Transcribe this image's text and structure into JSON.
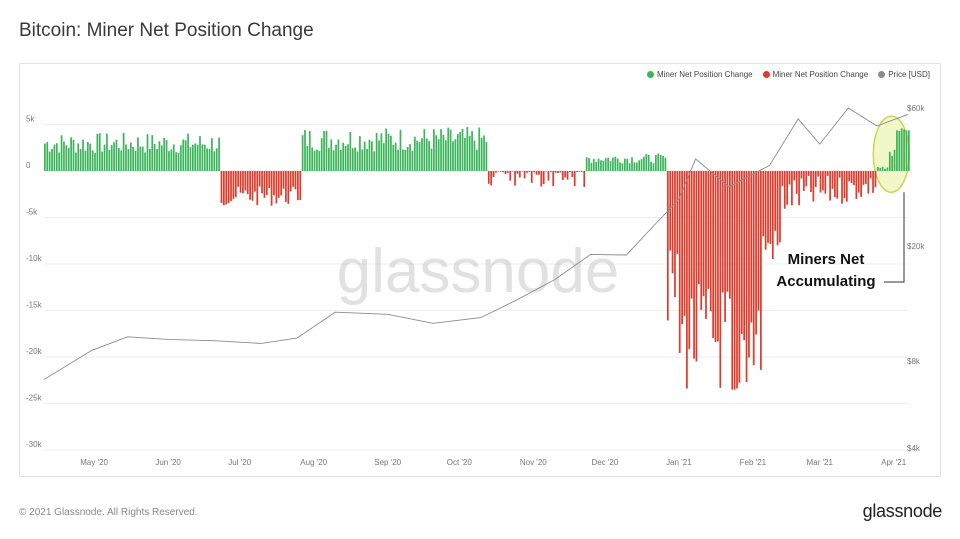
{
  "title": "Bitcoin: Miner Net Position Change",
  "legend": {
    "green_label": "Miner Net Position Change",
    "red_label": "Miner Net Position Change",
    "price_label": "Price [USD]"
  },
  "watermark": "glassnode",
  "footer": {
    "copyright": "© 2021 Glassnode. All Rights Reserved.",
    "brand": "glassnode"
  },
  "colors": {
    "positive": "#3cb55a",
    "negative": "#e03a2a",
    "price": "#8c8c8c",
    "highlight_fill": "#f2f7c8",
    "highlight_stroke": "#c9d65a"
  },
  "chart_data": {
    "type": "bar",
    "left_axis": {
      "ticks": [
        5000,
        0,
        -5000,
        -10000,
        -15000,
        -20000,
        -25000,
        -30000
      ],
      "tick_labels": [
        "5k",
        "0",
        "-5k",
        "-10k",
        "-15k",
        "-20k",
        "-25k",
        "-30k"
      ],
      "ylim": [
        -30000,
        6000
      ]
    },
    "right_axis": {
      "scale": "log",
      "ticks": [
        60000,
        20000,
        8000,
        4000
      ],
      "tick_labels": [
        "$60k",
        "$20k",
        "$8k",
        "$4k"
      ]
    },
    "x_ticks": [
      "May '20",
      "Jun '20",
      "Jul '20",
      "Aug '20",
      "Sep '20",
      "Oct '20",
      "Nov '20",
      "Dec '20",
      "Jan '21",
      "Feb '21",
      "Mar '21",
      "Apr '21"
    ],
    "x_range": [
      "2020-04-10",
      "2021-04-07"
    ],
    "series": [
      {
        "name": "Miner Net Position Change",
        "segments": [
          {
            "start": "2020-04-10",
            "end": "2020-06-22",
            "approx": 3300
          },
          {
            "start": "2020-06-23",
            "end": "2020-07-26",
            "approx": -3000
          },
          {
            "start": "2020-07-27",
            "end": "2020-10-12",
            "approx": 3800
          },
          {
            "start": "2020-10-13",
            "end": "2020-11-22",
            "approx": -700
          },
          {
            "start": "2020-11-23",
            "end": "2020-12-26",
            "approx": 1500
          },
          {
            "start": "2020-12-27",
            "end": "2021-03-24",
            "approx": -8000,
            "min": -24000
          },
          {
            "start": "2021-03-25",
            "end": "2021-04-07",
            "approx": 2500,
            "max": 4500
          }
        ]
      },
      {
        "name": "Price [USD]",
        "x": [
          "2020-04-10",
          "2020-04-30",
          "2020-05-15",
          "2020-06-01",
          "2020-06-20",
          "2020-07-10",
          "2020-07-25",
          "2020-08-10",
          "2020-09-01",
          "2020-09-20",
          "2020-10-10",
          "2020-10-25",
          "2020-11-10",
          "2020-11-25",
          "2020-12-10",
          "2020-12-20",
          "2021-01-01",
          "2021-01-08",
          "2021-01-22",
          "2021-02-08",
          "2021-02-20",
          "2021-03-01",
          "2021-03-13",
          "2021-03-25",
          "2021-04-07"
        ],
        "y": [
          6900,
          8700,
          9700,
          9500,
          9400,
          9200,
          9600,
          11800,
          11600,
          10800,
          11300,
          13000,
          15300,
          18700,
          18600,
          22800,
          29000,
          40000,
          32000,
          38000,
          55000,
          45000,
          60000,
          52000,
          57000
        ]
      }
    ],
    "annotations": [
      {
        "text_lines": [
          "Miners Net",
          "Accumulating"
        ],
        "target": "2021-04-01"
      }
    ]
  }
}
